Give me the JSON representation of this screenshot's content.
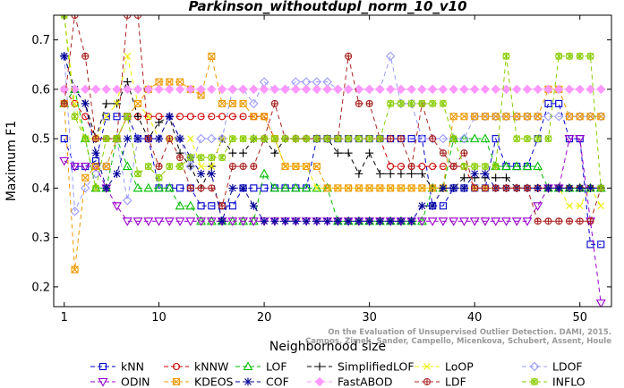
{
  "chart_data": {
    "type": "line",
    "title": "Parkinson_withoutdupl_norm_10_v10",
    "xlabel": "Neighborhood size",
    "ylabel": "Maximum F1",
    "xlim": [
      0,
      53
    ],
    "ylim": [
      0.16,
      0.75
    ],
    "xticks": [
      1,
      10,
      20,
      30,
      40,
      50
    ],
    "yticks": [
      0.2,
      0.3,
      0.4,
      0.5,
      0.6,
      0.7
    ],
    "credit": [
      "Campos, Zimek, Sander, Campello, Micenkova, Schubert, Assent, Houle",
      "On the Evaluation of Unsupervised Outlier Detection. DAMI, 2015."
    ],
    "x": [
      1,
      2,
      3,
      4,
      5,
      6,
      7,
      8,
      9,
      10,
      11,
      12,
      13,
      14,
      15,
      16,
      17,
      18,
      19,
      20,
      21,
      22,
      23,
      24,
      25,
      26,
      27,
      28,
      29,
      30,
      31,
      32,
      33,
      34,
      35,
      36,
      37,
      38,
      39,
      40,
      41,
      42,
      43,
      44,
      45,
      46,
      47,
      48,
      49,
      50,
      51,
      52
    ],
    "series": [
      {
        "name": "kNN",
        "color": "#0000cc",
        "marker": "square",
        "values": [
          0.5,
          0.444,
          0.444,
          0.455,
          0.545,
          0.545,
          0.545,
          0.5,
          0.5,
          0.4,
          0.4,
          0.4,
          0.4,
          0.364,
          0.364,
          0.364,
          0.364,
          0.4,
          0.4,
          0.4,
          0.4,
          0.4,
          0.4,
          0.4,
          0.5,
          0.5,
          0.5,
          0.5,
          0.5,
          0.5,
          0.5,
          0.5,
          0.5,
          0.5,
          0.5,
          0.364,
          0.364,
          0.4,
          0.4,
          0.4,
          0.4,
          0.5,
          0.444,
          0.444,
          0.444,
          0.5,
          0.571,
          0.571,
          0.5,
          0.5,
          0.286,
          0.286
        ]
      },
      {
        "name": "kNNW",
        "color": "#cc0000",
        "marker": "circle",
        "values": [
          0.6,
          0.571,
          0.545,
          0.5,
          0.5,
          0.5,
          0.545,
          0.545,
          0.545,
          0.545,
          0.545,
          0.545,
          0.545,
          0.545,
          0.545,
          0.545,
          0.545,
          0.545,
          0.545,
          0.545,
          0.5,
          0.5,
          0.5,
          0.5,
          0.5,
          0.5,
          0.5,
          0.5,
          0.5,
          0.5,
          0.5,
          0.444,
          0.444,
          0.444,
          0.444,
          0.444,
          0.444,
          0.444,
          0.444,
          0.4,
          0.4,
          0.4,
          0.4,
          0.4,
          0.4,
          0.4,
          0.4,
          0.4,
          0.4,
          0.4,
          0.4,
          0.4
        ]
      },
      {
        "name": "LOF",
        "color": "#00bb00",
        "marker": "triangle-up",
        "values": [
          0.571,
          0.6,
          0.5,
          0.4,
          0.4,
          0.5,
          0.444,
          0.4,
          0.4,
          0.4,
          0.4,
          0.364,
          0.364,
          0.333,
          0.333,
          0.333,
          0.333,
          0.333,
          0.333,
          0.429,
          0.4,
          0.4,
          0.4,
          0.4,
          0.4,
          0.4,
          0.333,
          0.333,
          0.333,
          0.333,
          0.333,
          0.333,
          0.333,
          0.333,
          0.333,
          0.4,
          0.4,
          0.5,
          0.5,
          0.5,
          0.5,
          0.444,
          0.444,
          0.444,
          0.444,
          0.444,
          0.4,
          0.4,
          0.4,
          0.4,
          0.4,
          0.4
        ]
      },
      {
        "name": "SimplifiedLOF",
        "color": "#000000",
        "marker": "plus",
        "values": [
          0.667,
          0.6,
          0.571,
          0.5,
          0.571,
          0.571,
          0.615,
          0.545,
          0.5,
          0.533,
          0.545,
          0.471,
          0.444,
          0.4,
          0.444,
          0.5,
          0.471,
          0.471,
          0.5,
          0.5,
          0.471,
          0.5,
          0.5,
          0.5,
          0.5,
          0.5,
          0.471,
          0.471,
          0.429,
          0.471,
          0.429,
          0.429,
          0.429,
          0.429,
          0.429,
          0.4,
          0.4,
          0.4,
          0.421,
          0.421,
          0.421,
          0.421,
          0.421,
          0.4,
          0.4,
          0.4,
          0.4,
          0.4,
          0.4,
          0.4,
          0.4,
          0.4
        ]
      },
      {
        "name": "LoOP",
        "color": "#eeee00",
        "marker": "x",
        "values": [
          0.75,
          0.571,
          0.5,
          0.5,
          0.545,
          0.571,
          0.667,
          0.571,
          0.545,
          0.5,
          0.5,
          0.5,
          0.5,
          0.444,
          0.444,
          0.5,
          0.5,
          0.5,
          0.5,
          0.5,
          0.5,
          0.444,
          0.444,
          0.444,
          0.4,
          0.4,
          0.4,
          0.4,
          0.4,
          0.4,
          0.4,
          0.4,
          0.4,
          0.4,
          0.4,
          0.4,
          0.4,
          0.4,
          0.4,
          0.4,
          0.4,
          0.4,
          0.4,
          0.4,
          0.4,
          0.4,
          0.4,
          0.4,
          0.364,
          0.364,
          0.4,
          0.364
        ]
      },
      {
        "name": "LDOF",
        "color": "#9999ff",
        "marker": "diamond",
        "values": [
          0.667,
          0.353,
          0.4,
          0.429,
          0.444,
          0.5,
          0.375,
          0.5,
          0.5,
          0.5,
          0.545,
          0.5,
          0.444,
          0.5,
          0.5,
          0.5,
          0.6,
          0.6,
          0.571,
          0.615,
          0.6,
          0.6,
          0.615,
          0.615,
          0.615,
          0.615,
          0.6,
          0.6,
          0.6,
          0.6,
          0.6,
          0.667,
          0.571,
          0.571,
          0.5,
          0.5,
          0.5,
          0.5,
          0.5,
          0.545,
          0.545,
          0.545,
          0.545,
          0.545,
          0.545,
          0.545,
          0.545,
          0.545,
          0.545,
          0.545,
          0.545,
          0.545
        ]
      },
      {
        "name": "ODIN",
        "color": "#9900cc",
        "marker": "triangle-down",
        "values": [
          0.455,
          0.444,
          0.444,
          0.444,
          0.4,
          0.364,
          0.333,
          0.333,
          0.333,
          0.333,
          0.333,
          0.333,
          0.333,
          0.333,
          0.333,
          0.333,
          0.333,
          0.333,
          0.333,
          0.333,
          0.333,
          0.333,
          0.333,
          0.333,
          0.333,
          0.333,
          0.333,
          0.333,
          0.333,
          0.333,
          0.333,
          0.333,
          0.333,
          0.333,
          0.333,
          0.333,
          0.333,
          0.333,
          0.333,
          0.333,
          0.333,
          0.333,
          0.333,
          0.333,
          0.333,
          0.364,
          0.4,
          0.4,
          0.5,
          0.5,
          0.333,
          0.167
        ]
      },
      {
        "name": "KDEOS",
        "color": "#ee9900",
        "marker": "square-x",
        "values": [
          0.571,
          0.235,
          0.421,
          0.444,
          0.444,
          0.5,
          0.545,
          0.571,
          0.6,
          0.615,
          0.615,
          0.615,
          0.6,
          0.588,
          0.667,
          0.571,
          0.571,
          0.571,
          0.545,
          0.545,
          0.5,
          0.444,
          0.444,
          0.444,
          0.444,
          0.4,
          0.4,
          0.4,
          0.4,
          0.4,
          0.4,
          0.4,
          0.4,
          0.4,
          0.4,
          0.4,
          0.4,
          0.545,
          0.545,
          0.545,
          0.545,
          0.545,
          0.545,
          0.545,
          0.545,
          0.545,
          0.6,
          0.6,
          0.545,
          0.545,
          0.545,
          0.545
        ]
      },
      {
        "name": "COF",
        "color": "#000099",
        "marker": "star",
        "values": [
          0.667,
          0.6,
          0.571,
          0.471,
          0.4,
          0.429,
          0.5,
          0.5,
          0.5,
          0.5,
          0.545,
          0.5,
          0.462,
          0.429,
          0.429,
          0.333,
          0.4,
          0.4,
          0.364,
          0.333,
          0.333,
          0.333,
          0.333,
          0.333,
          0.333,
          0.333,
          0.333,
          0.333,
          0.333,
          0.333,
          0.333,
          0.333,
          0.333,
          0.333,
          0.364,
          0.364,
          0.4,
          0.4,
          0.4,
          0.429,
          0.429,
          0.4,
          0.4,
          0.4,
          0.4,
          0.4,
          0.4,
          0.4,
          0.4,
          0.4,
          0.4,
          0.4
        ]
      },
      {
        "name": "FastABOD",
        "color": "#ff99ff",
        "marker": "diamond-filled",
        "values": [
          0.6,
          0.6,
          0.6,
          0.6,
          0.6,
          0.6,
          0.6,
          0.6,
          0.6,
          0.6,
          0.6,
          0.6,
          0.6,
          0.6,
          0.6,
          0.6,
          0.6,
          0.6,
          0.6,
          0.6,
          0.6,
          0.6,
          0.6,
          0.6,
          0.6,
          0.6,
          0.6,
          0.6,
          0.6,
          0.6,
          0.6,
          0.6,
          0.6,
          0.6,
          0.6,
          0.6,
          0.6,
          0.6,
          0.6,
          0.6,
          0.6,
          0.6,
          0.6,
          0.6,
          0.6,
          0.6,
          0.6,
          0.6,
          0.6,
          0.6,
          0.6,
          0.6
        ]
      },
      {
        "name": "LDF",
        "color": "#aa2222",
        "marker": "circle-plus",
        "values": [
          0.571,
          0.75,
          0.667,
          0.5,
          0.5,
          0.5,
          0.75,
          0.75,
          0.5,
          0.444,
          0.5,
          0.462,
          0.4,
          0.4,
          0.4,
          0.364,
          0.444,
          0.444,
          0.444,
          0.5,
          0.571,
          0.5,
          0.5,
          0.5,
          0.5,
          0.5,
          0.5,
          0.667,
          0.571,
          0.571,
          0.5,
          0.5,
          0.5,
          0.444,
          0.571,
          0.5,
          0.471,
          0.444,
          0.471,
          0.4,
          0.4,
          0.4,
          0.4,
          0.4,
          0.4,
          0.333,
          0.333,
          0.333,
          0.333,
          0.333,
          0.333,
          0.4
        ]
      },
      {
        "name": "INFLO",
        "color": "#88cc00",
        "marker": "star-circle",
        "values": [
          0.75,
          0.545,
          0.5,
          0.4,
          0.5,
          0.5,
          0.545,
          0.429,
          0.444,
          0.421,
          0.444,
          0.444,
          0.462,
          0.462,
          0.462,
          0.462,
          0.5,
          0.5,
          0.5,
          0.5,
          0.5,
          0.5,
          0.5,
          0.5,
          0.5,
          0.5,
          0.5,
          0.5,
          0.5,
          0.5,
          0.5,
          0.571,
          0.571,
          0.571,
          0.571,
          0.571,
          0.571,
          0.5,
          0.444,
          0.444,
          0.444,
          0.444,
          0.667,
          0.5,
          0.5,
          0.5,
          0.5,
          0.667,
          0.667,
          0.667,
          0.667,
          0.4
        ]
      }
    ]
  }
}
